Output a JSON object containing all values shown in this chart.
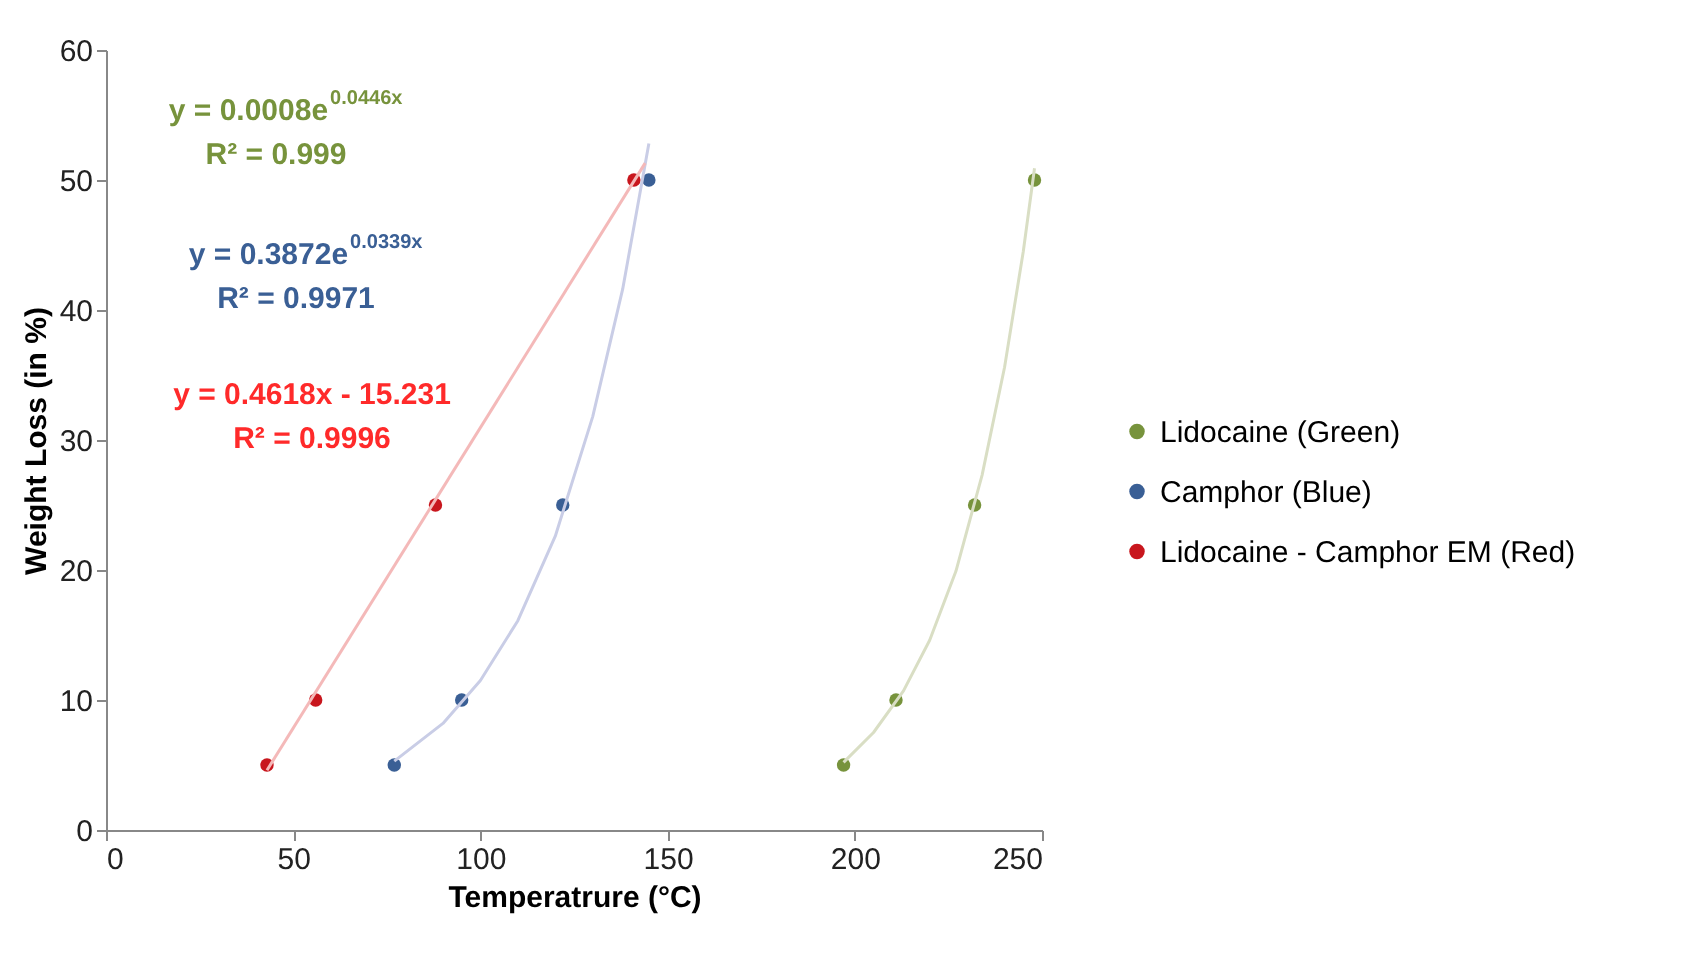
{
  "chart_data": {
    "type": "scatter",
    "xlabel": "Temperatrure (°C)",
    "ylabel": "Weight Loss (in %)",
    "xlim": [
      0,
      250
    ],
    "xticks": [
      0,
      50,
      100,
      150,
      200,
      250
    ],
    "ylim": [
      0,
      60
    ],
    "yticks": [
      0,
      10,
      20,
      30,
      40,
      50,
      60
    ],
    "grid": false,
    "legend": "right",
    "marker": "circle",
    "series": [
      {
        "name": "Lidocaine (Green)",
        "color": "#77933c",
        "x": [
          197,
          211,
          232,
          248
        ],
        "values": [
          5,
          10,
          25,
          50
        ]
      },
      {
        "name": "Camphor (Blue)",
        "color": "#3a5f95",
        "x": [
          77,
          95,
          122,
          145
        ],
        "values": [
          5,
          10,
          25,
          50
        ]
      },
      {
        "name": "Lidocaine - Camphor EM (Red)",
        "color": "#c8161d",
        "x": [
          43,
          56,
          88,
          141
        ],
        "values": [
          5,
          10,
          25,
          50
        ]
      },
      {
        "type": "line",
        "color": "#d9dec4",
        "marker": "none",
        "x": [
          197,
          205,
          213,
          220,
          227,
          234,
          240,
          245,
          248
        ],
        "values": [
          5.2,
          7.5,
          10.7,
          14.6,
          19.9,
          27.3,
          35.6,
          44.5,
          50.9
        ]
      },
      {
        "type": "line",
        "color": "#c9cde6",
        "marker": "none",
        "x": [
          77,
          90,
          100,
          110,
          120,
          130,
          138,
          145
        ],
        "values": [
          5.3,
          8.2,
          11.5,
          16.1,
          22.6,
          31.8,
          41.6,
          52.8
        ]
      },
      {
        "type": "line",
        "color": "#f4b9b9",
        "marker": "none",
        "x": [
          43,
          144
        ],
        "values": [
          4.6,
          51.3
        ]
      }
    ],
    "annotations": [
      "y = 0.0008e$^{0.0446x}$",
      "R² = 0.999",
      "y = 0.3872e$^{0.0339x}$",
      "R² = 0.9971",
      "y = 0.4618x - 15.231",
      "R² = 0.9996"
    ]
  }
}
